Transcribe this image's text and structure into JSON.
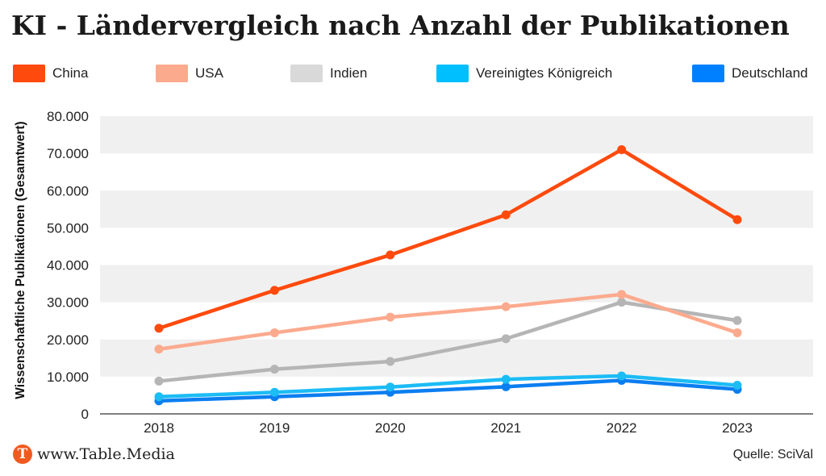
{
  "title": "KI - Ländervergleich nach Anzahl der Publikationen",
  "footer": {
    "logo_letter": "T",
    "site": "www.Table.Media",
    "source": "Quelle: SciVal"
  },
  "chart_data": {
    "type": "line",
    "title": "KI - Ländervergleich nach Anzahl der Publikationen",
    "xlabel": "",
    "ylabel": "Wissenschaftliche Publikationen (Gesamtwert)",
    "x": [
      "2018",
      "2019",
      "2020",
      "2021",
      "2022",
      "2023"
    ],
    "ylim": [
      0,
      80000
    ],
    "yticks": [
      0,
      10000,
      20000,
      30000,
      40000,
      50000,
      60000,
      70000,
      80000
    ],
    "ytick_labels": [
      "0",
      "10.000",
      "20.000",
      "30.000",
      "40.000",
      "50.000",
      "60.000",
      "70.000",
      "80.000"
    ],
    "grid": "alternating horizontal bands",
    "legend_position": "top",
    "series": [
      {
        "name": "China",
        "color": "#ff4a0d",
        "values": [
          23000,
          33200,
          42700,
          53500,
          71000,
          52200
        ]
      },
      {
        "name": "USA",
        "color": "#fcaa8e",
        "values": [
          17400,
          21800,
          26000,
          28800,
          32100,
          21800
        ]
      },
      {
        "name": "Indien",
        "color": "#b5b5b5",
        "values": [
          8800,
          12000,
          14100,
          20200,
          30000,
          25100
        ]
      },
      {
        "name": "Vereinigtes Königreich",
        "color": "#1cbcf5",
        "values": [
          4600,
          5800,
          7200,
          9300,
          10200,
          7700
        ]
      },
      {
        "name": "Deutschland",
        "color": "#0b7ef0",
        "values": [
          3500,
          4600,
          5800,
          7300,
          9000,
          6600
        ]
      }
    ],
    "legend_colors": [
      "#ff4a0d",
      "#fcaa8e",
      "#d9d9d9",
      "#00bfff",
      "#0080ff"
    ]
  }
}
